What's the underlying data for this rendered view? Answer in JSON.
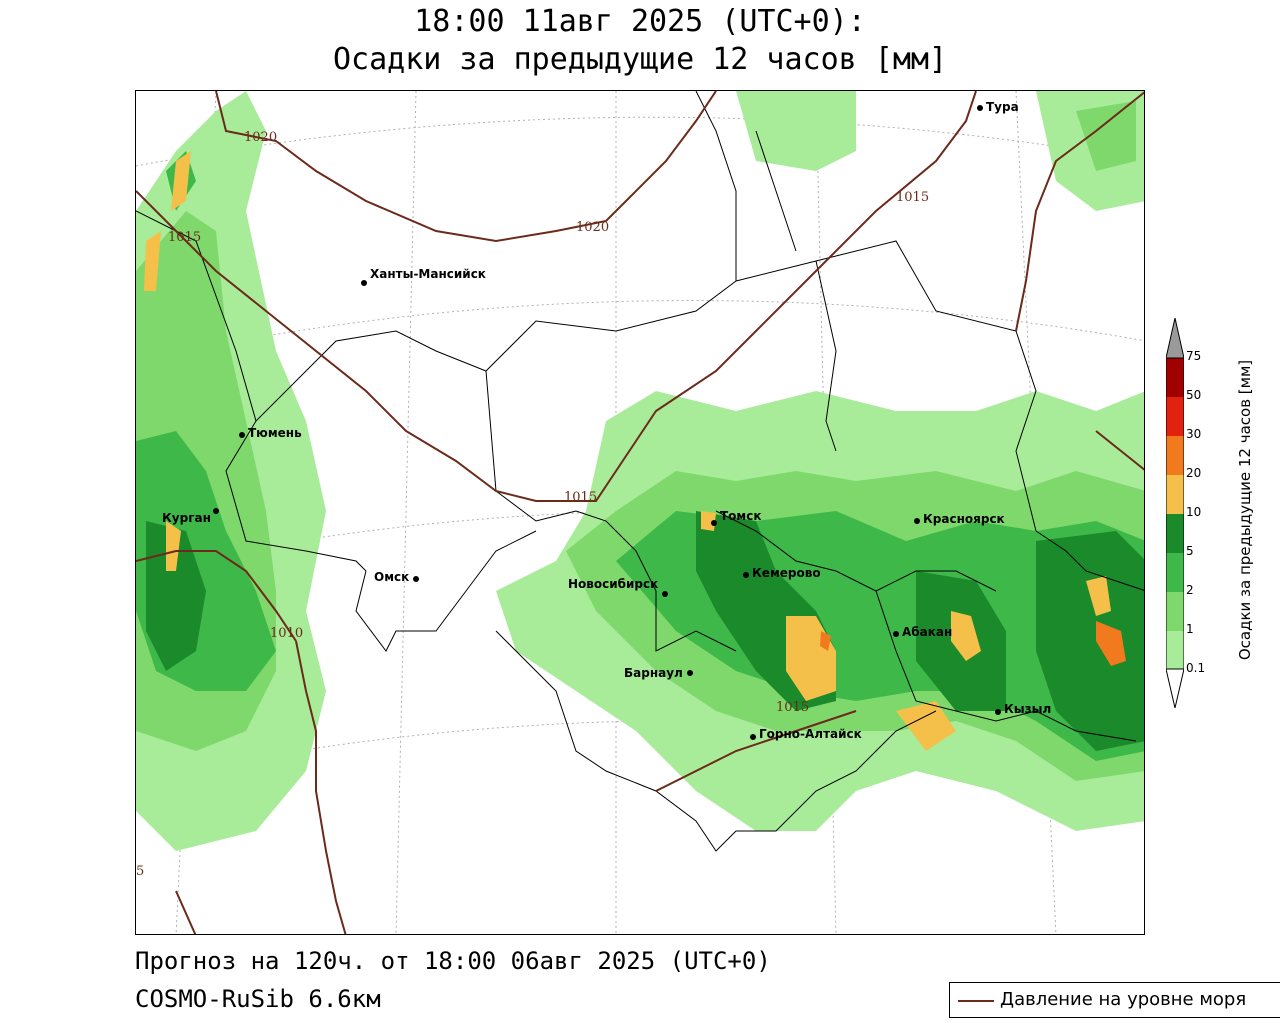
{
  "title": {
    "line1": "18:00 11авг 2025 (UTC+0):",
    "line2": "Осадки за предыдущие 12 часов [мм]"
  },
  "footer": {
    "forecast": "Прогноз на 120ч. от 18:00 06авг 2025 (UTC+0)",
    "model": "COSMO-RuSib 6.6км"
  },
  "legend": {
    "isobar_label": "Давление на уровне моря",
    "isobar_color": "#6b2a1a"
  },
  "colorbar": {
    "title": "Осадки за предыдущие 12 часов [мм]",
    "ticks": [
      "0.1",
      "1",
      "2",
      "5",
      "10",
      "20",
      "30",
      "50",
      "75"
    ],
    "colors": [
      "#ffffff",
      "#a8ec9a",
      "#7ed86c",
      "#3fb84a",
      "#1a8a2a",
      "#f5c04a",
      "#f27a1e",
      "#e0220e",
      "#a00000",
      "#9a9a9a"
    ]
  },
  "cities": [
    {
      "name": "Тура"
    },
    {
      "name": "Ханты-Мансийск"
    },
    {
      "name": "Тюмень"
    },
    {
      "name": "Курган"
    },
    {
      "name": "Омск"
    },
    {
      "name": "Новосибирск"
    },
    {
      "name": "Томск"
    },
    {
      "name": "Кемерово"
    },
    {
      "name": "Красноярск"
    },
    {
      "name": "Абакан"
    },
    {
      "name": "Барнаул"
    },
    {
      "name": "Горно-Алтайск"
    },
    {
      "name": "Кызыл"
    }
  ],
  "isobars": [
    {
      "label": "1020"
    },
    {
      "label": "1020"
    },
    {
      "label": "1015"
    },
    {
      "label": "1015"
    },
    {
      "label": "1015"
    },
    {
      "label": "1010"
    },
    {
      "label": "1015"
    },
    {
      "label": "5"
    }
  ]
}
